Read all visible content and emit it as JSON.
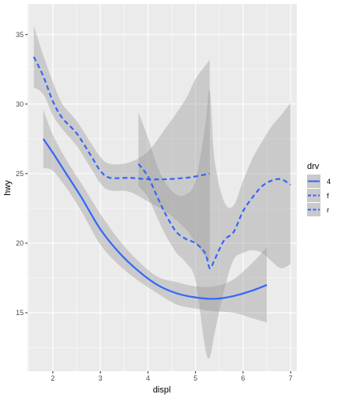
{
  "chart_data": {
    "type": "line",
    "title": "",
    "xlabel": "displ",
    "ylabel": "hwy",
    "xlim": [
      1.47,
      7.13
    ],
    "ylim": [
      10.8,
      37.2
    ],
    "x_ticks": [
      2,
      3,
      4,
      5,
      6,
      7
    ],
    "y_ticks": [
      15,
      20,
      25,
      30,
      35
    ],
    "grid": true,
    "legend": {
      "title": "drv",
      "placement": "right"
    },
    "colors": {
      "panel": "#ebebeb",
      "grid_major": "#ffffff",
      "line": "#3366ff",
      "ribbon": "#999999"
    },
    "series": [
      {
        "name": "4",
        "linetype": "solid",
        "x": [
          1.8,
          2.0,
          2.3,
          2.6,
          3.0,
          3.4,
          3.8,
          4.2,
          4.6,
          5.0,
          5.4,
          5.8,
          6.2,
          6.5
        ],
        "y": [
          27.5,
          26.5,
          24.9,
          23.3,
          21.0,
          19.3,
          18.0,
          17.0,
          16.4,
          16.1,
          16.0,
          16.2,
          16.6,
          17.0
        ],
        "lo": [
          25.4,
          25.2,
          23.9,
          22.3,
          19.9,
          18.4,
          17.3,
          16.4,
          15.6,
          15.3,
          15.1,
          15.0,
          14.6,
          14.3
        ],
        "hi": [
          29.6,
          27.8,
          25.9,
          24.3,
          22.1,
          20.2,
          18.7,
          17.6,
          17.2,
          16.9,
          16.9,
          17.4,
          18.6,
          19.7
        ]
      },
      {
        "name": "f",
        "linetype": "dashed",
        "x": [
          1.6,
          1.8,
          2.0,
          2.2,
          2.5,
          2.8,
          3.0,
          3.2,
          3.6,
          4.0,
          4.4,
          4.8,
          5.0,
          5.3
        ],
        "y": [
          33.4,
          32.0,
          30.2,
          29.0,
          27.9,
          26.3,
          25.2,
          24.7,
          24.7,
          24.6,
          24.6,
          24.7,
          24.8,
          25.0
        ],
        "lo": [
          31.2,
          30.7,
          29.2,
          28.2,
          27.0,
          25.4,
          24.3,
          23.8,
          23.7,
          23.0,
          22.2,
          21.0,
          20.0,
          18.6
        ],
        "hi": [
          35.6,
          33.5,
          31.6,
          30.0,
          28.8,
          27.2,
          26.2,
          25.7,
          25.8,
          26.6,
          28.4,
          30.4,
          31.8,
          33.2
        ]
      },
      {
        "name": "r",
        "linetype": "dashed",
        "x": [
          3.8,
          4.0,
          4.2,
          4.4,
          4.6,
          4.8,
          5.0,
          5.2,
          5.3,
          5.4,
          5.6,
          5.8,
          6.0,
          6.2,
          6.4,
          6.6,
          6.8,
          7.0
        ],
        "y": [
          25.7,
          24.8,
          23.3,
          21.9,
          20.8,
          20.3,
          20.0,
          19.3,
          18.2,
          18.8,
          20.2,
          20.8,
          22.3,
          23.3,
          24.1,
          24.5,
          24.6,
          24.2
        ],
        "lo": [
          24.1,
          23.3,
          21.8,
          20.4,
          19.3,
          18.6,
          17.3,
          12.5,
          11.8,
          13.5,
          16.6,
          18.8,
          19.3,
          19.5,
          19.3,
          18.7,
          18.2,
          18.5
        ],
        "hi": [
          29.4,
          27.6,
          25.5,
          24.2,
          23.5,
          23.5,
          24.5,
          28.3,
          31.0,
          26.0,
          23.0,
          22.7,
          24.5,
          26.1,
          27.3,
          28.4,
          29.2,
          30.1
        ]
      }
    ]
  }
}
